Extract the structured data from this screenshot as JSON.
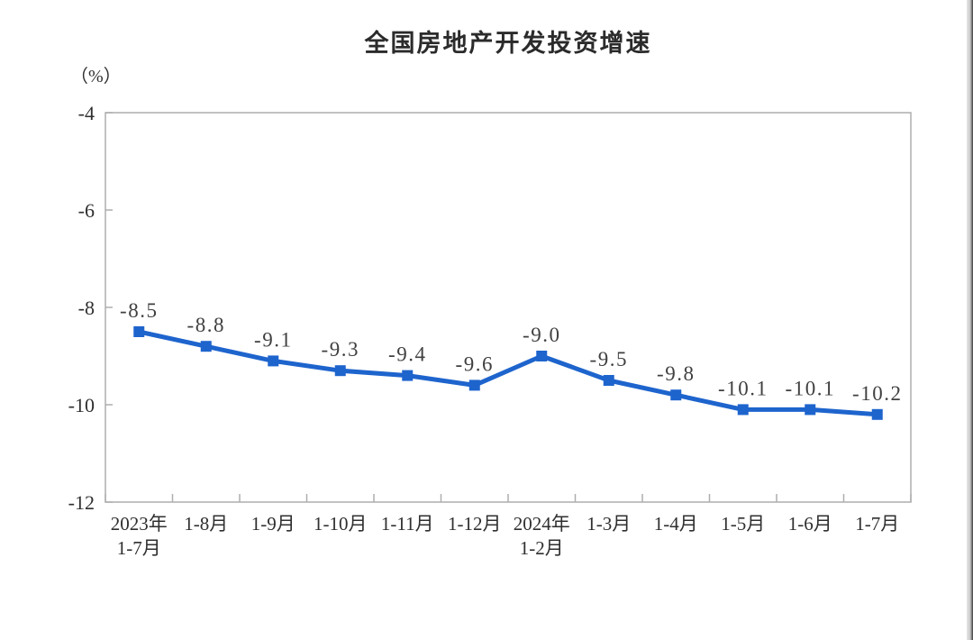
{
  "chart_data": {
    "type": "line",
    "title": "全国房地产开发投资增速",
    "unit_label": "（%）",
    "categories": [
      "2023年\n1-7月",
      "1-8月",
      "1-9月",
      "1-10月",
      "1-11月",
      "1-12月",
      "2024年\n1-2月",
      "1-3月",
      "1-4月",
      "1-5月",
      "1-6月",
      "1-7月"
    ],
    "values": [
      -8.5,
      -8.8,
      -9.1,
      -9.3,
      -9.4,
      -9.6,
      -9.0,
      -9.5,
      -9.8,
      -10.1,
      -10.1,
      -10.2
    ],
    "data_labels": [
      "-8.5",
      "-8.8",
      "-9.1",
      "-9.3",
      "-9.4",
      "-9.6",
      "-9.0",
      "-9.5",
      "-9.8",
      "-10.1",
      "-10.1",
      "-10.2"
    ],
    "y_ticks": [
      -4,
      -6,
      -8,
      -10,
      -12
    ],
    "ylim": [
      -12,
      -4
    ],
    "xlabel": "",
    "ylabel": "（%）",
    "grid": false,
    "legend": "none",
    "line_color": "#1e64cd",
    "marker": "square",
    "data_label_color": "#404040",
    "axis_color": "#aeaeae",
    "tick_text_color": "#2f2f2f"
  }
}
